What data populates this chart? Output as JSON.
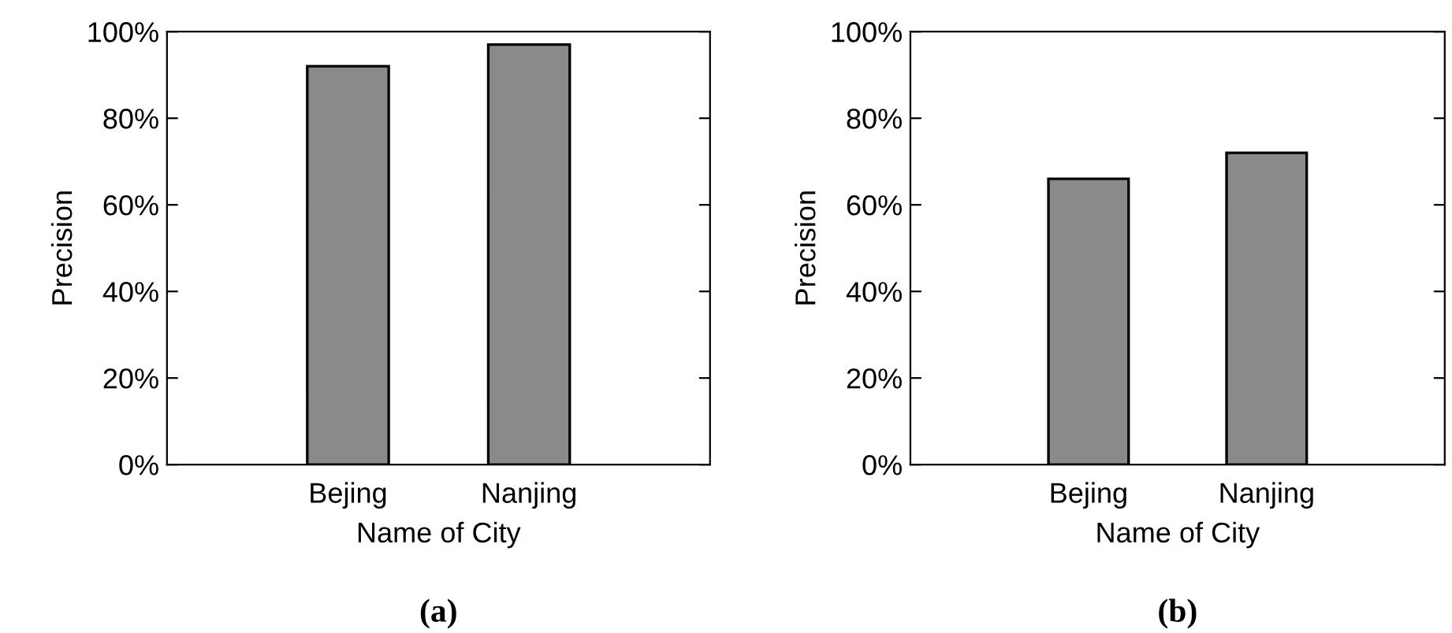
{
  "chart_data": [
    {
      "type": "bar",
      "title": "(a)",
      "xlabel": "Name of City",
      "ylabel": "Precision",
      "categories": [
        "Bejing",
        "Nanjing"
      ],
      "values": [
        92,
        97
      ],
      "color": "#8a8a8a",
      "ylim": [
        0,
        100
      ],
      "yticks": [
        {
          "value": 0,
          "label": "0%"
        },
        {
          "value": 20,
          "label": "20%"
        },
        {
          "value": 40,
          "label": "40%"
        },
        {
          "value": 60,
          "label": "60%"
        },
        {
          "value": 80,
          "label": "80%"
        },
        {
          "value": 100,
          "label": "100%"
        }
      ],
      "grid": false,
      "legend": false
    },
    {
      "type": "bar",
      "title": "(b)",
      "xlabel": "Name of City",
      "ylabel": "Precision",
      "categories": [
        "Bejing",
        "Nanjing"
      ],
      "values": [
        66,
        72
      ],
      "color": "#8a8a8a",
      "ylim": [
        0,
        100
      ],
      "yticks": [
        {
          "value": 0,
          "label": "0%"
        },
        {
          "value": 20,
          "label": "20%"
        },
        {
          "value": 40,
          "label": "40%"
        },
        {
          "value": 60,
          "label": "60%"
        },
        {
          "value": 80,
          "label": "80%"
        },
        {
          "value": 100,
          "label": "100%"
        }
      ],
      "grid": false,
      "legend": false
    }
  ]
}
